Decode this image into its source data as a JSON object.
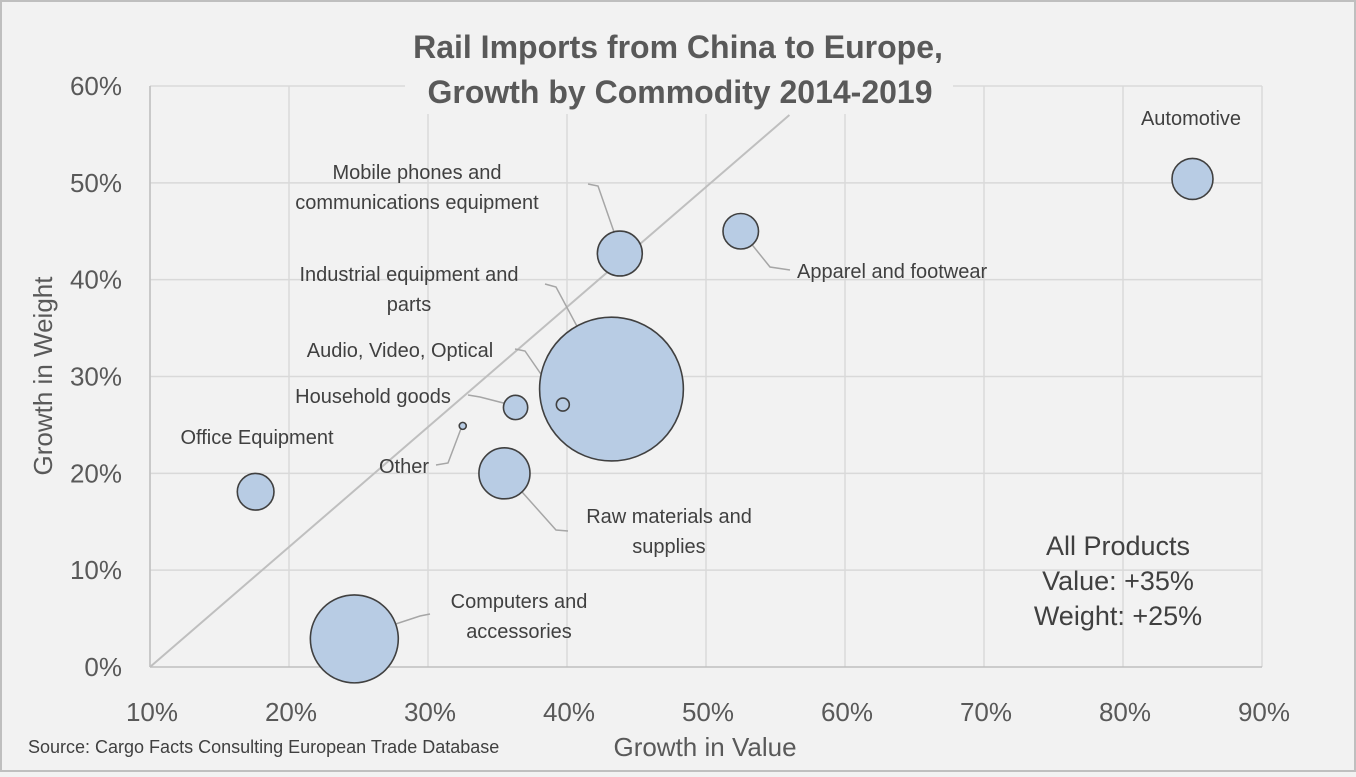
{
  "chart_data": {
    "type": "scatter",
    "subtype": "bubble",
    "title_lines": [
      "Rail Imports from China to Europe,",
      "Growth by Commodity 2014-2019"
    ],
    "xlabel": "Growth in Value",
    "ylabel": "Growth in Weight",
    "xlim": [
      10,
      90
    ],
    "ylim": [
      0,
      60
    ],
    "x_ticks": [
      "10%",
      "20%",
      "30%",
      "40%",
      "50%",
      "60%",
      "70%",
      "80%",
      "90%"
    ],
    "y_ticks": [
      "0%",
      "10%",
      "20%",
      "30%",
      "40%",
      "50%",
      "60%"
    ],
    "grid": true,
    "reference_line": {
      "from": [
        10,
        0
      ],
      "to": [
        56,
        57
      ]
    },
    "bubble_color": "#b8cce4",
    "bubble_stroke": "#404040",
    "points": [
      {
        "label": [
          "Automotive"
        ],
        "x": 85,
        "y": 50.4,
        "size": 1.0
      },
      {
        "label": [
          "Mobile phones and",
          "communications equipment"
        ],
        "x": 43.8,
        "y": 42.7,
        "size": 1.2
      },
      {
        "label": [
          "Apparel and footwear"
        ],
        "x": 52.5,
        "y": 45.0,
        "size": 0.75
      },
      {
        "label": [
          "Industrial equipment and",
          "parts"
        ],
        "x": 43.2,
        "y": 28.7,
        "size": 12.3
      },
      {
        "label": [
          "Audio, Video, Optical"
        ],
        "x": 39.7,
        "y": 27.1,
        "size": 0.1
      },
      {
        "label": [
          "Household goods"
        ],
        "x": 36.3,
        "y": 26.8,
        "size": 0.35
      },
      {
        "label": [
          "Office Equipment"
        ],
        "x": 17.6,
        "y": 18.1,
        "size": 0.8
      },
      {
        "label": [
          "Other"
        ],
        "x": 32.5,
        "y": 24.9,
        "size": 0.02
      },
      {
        "label": [
          "Raw materials and",
          "supplies"
        ],
        "x": 35.5,
        "y": 20.0,
        "size": 1.55
      },
      {
        "label": [
          "Computers and",
          "accessories"
        ],
        "x": 24.7,
        "y": 2.9,
        "size": 4.6
      }
    ]
  },
  "summary": {
    "line1": "All Products",
    "line2": "Value: +35%",
    "line3": "Weight: +25%"
  },
  "source": "Source: Cargo Facts Consulting European Trade Database",
  "colors": {
    "background": "#f2f2f2",
    "grid": "#d9d9d9",
    "axis": "#bfbfbf",
    "reference_line": "#bfbfbf",
    "leader_line": "#a6a6a6"
  }
}
